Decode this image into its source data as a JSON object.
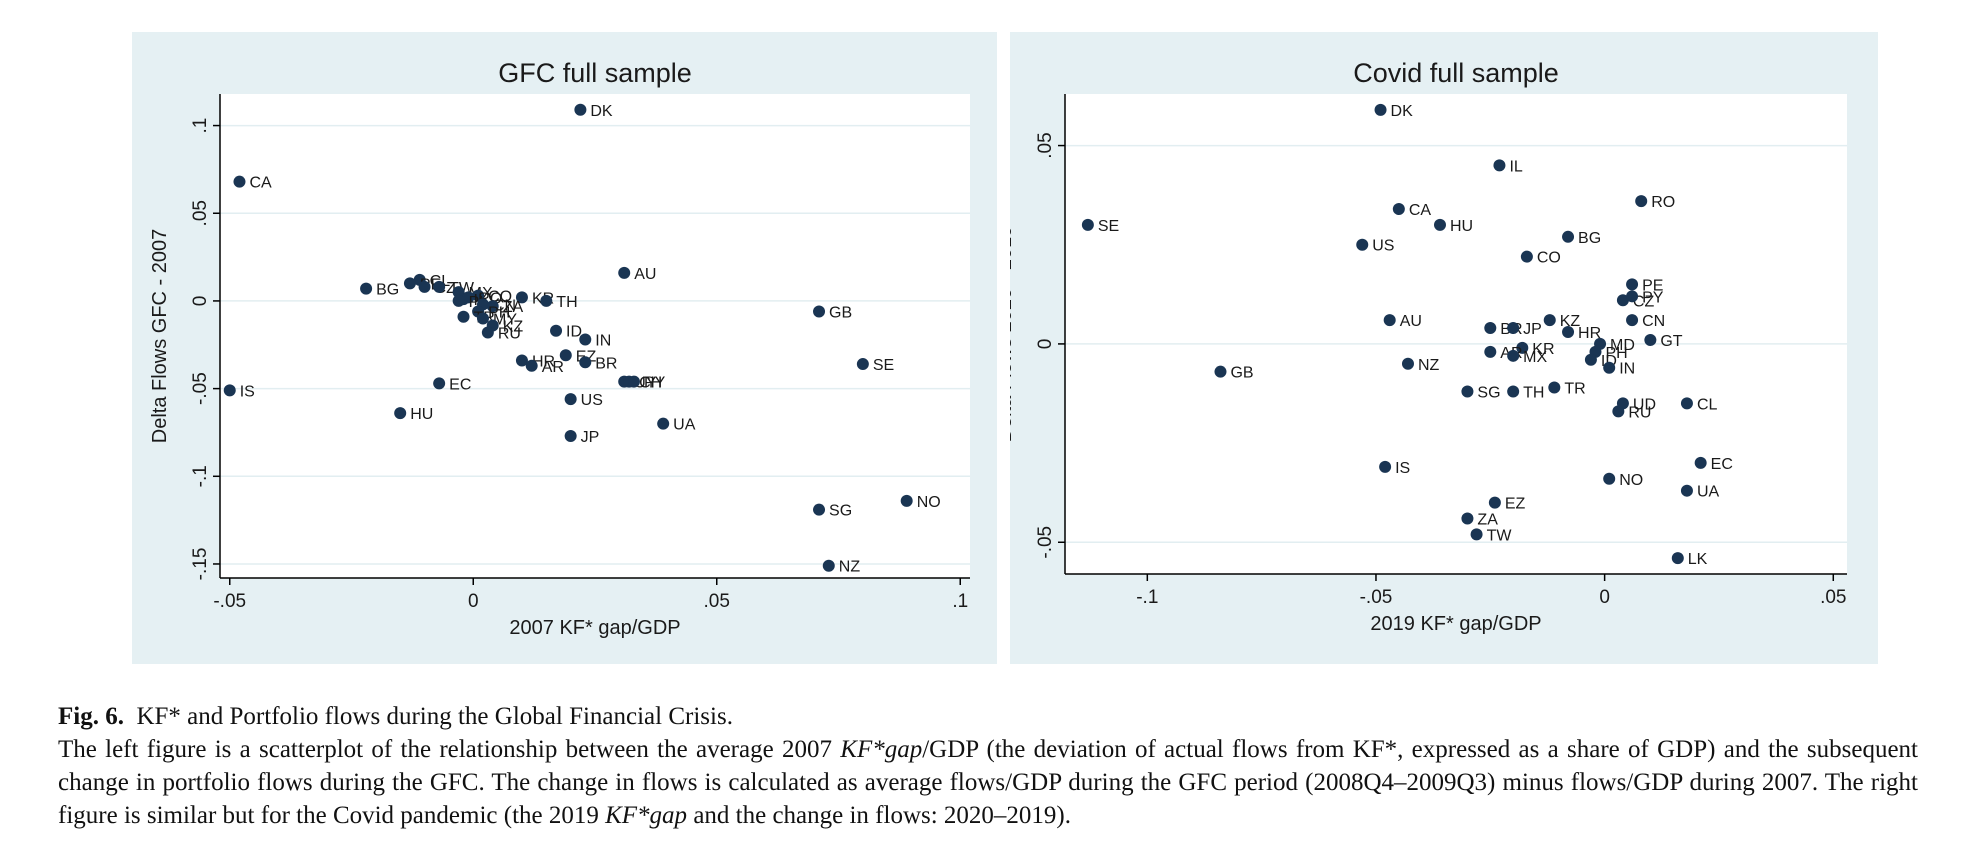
{
  "chart_data": [
    {
      "type": "scatter",
      "title": "GFC full sample",
      "xlabel": "2007 KF* gap/GDP",
      "ylabel": "Delta Flows GFC - 2007",
      "xlim": [
        -0.052,
        0.102
      ],
      "ylim": [
        -0.158,
        0.118
      ],
      "xticks": [
        -0.05,
        0,
        0.05,
        0.1
      ],
      "xtick_labels": [
        "-.05",
        "0",
        ".05",
        ".1"
      ],
      "yticks": [
        0.1,
        0.05,
        0,
        -0.05,
        -0.1,
        -0.15
      ],
      "ytick_labels": [
        ".1",
        ".05",
        "0",
        "-.05",
        "-.1",
        "-.15"
      ],
      "grid": true,
      "color": "#1a3553",
      "points": [
        {
          "label": "DK",
          "x": 0.022,
          "y": 0.109
        },
        {
          "label": "CA",
          "x": -0.048,
          "y": 0.068
        },
        {
          "label": "AU",
          "x": 0.031,
          "y": 0.016
        },
        {
          "label": "BG",
          "x": -0.022,
          "y": 0.007
        },
        {
          "label": "CL",
          "x": -0.011,
          "y": 0.012
        },
        {
          "label": "PE",
          "x": -0.013,
          "y": 0.01
        },
        {
          "label": "CZ",
          "x": -0.01,
          "y": 0.008
        },
        {
          "label": "TW",
          "x": -0.007,
          "y": 0.008
        },
        {
          "label": "MX",
          "x": -0.003,
          "y": 0.005
        },
        {
          "label": "CO",
          "x": 0.001,
          "y": 0.003
        },
        {
          "label": "IL",
          "x": -0.002,
          "y": 0.001
        },
        {
          "label": "RO",
          "x": -0.001,
          "y": 0.002
        },
        {
          "label": "KR",
          "x": 0.01,
          "y": 0.002
        },
        {
          "label": "TH",
          "x": 0.015,
          "y": 0.0
        },
        {
          "label": "PL",
          "x": -0.003,
          "y": 0.0
        },
        {
          "label": "CN",
          "x": 0.002,
          "y": -0.002
        },
        {
          "label": "ZA",
          "x": 0.004,
          "y": -0.003
        },
        {
          "label": "PH",
          "x": 0.001,
          "y": -0.006
        },
        {
          "label": "TR",
          "x": -0.002,
          "y": -0.009
        },
        {
          "label": "MY",
          "x": 0.002,
          "y": -0.01
        },
        {
          "label": "KZ",
          "x": 0.004,
          "y": -0.014
        },
        {
          "label": "RU",
          "x": 0.003,
          "y": -0.018
        },
        {
          "label": "ID",
          "x": 0.017,
          "y": -0.017
        },
        {
          "label": "IN",
          "x": 0.023,
          "y": -0.022
        },
        {
          "label": "EZ",
          "x": 0.019,
          "y": -0.031
        },
        {
          "label": "BR",
          "x": 0.023,
          "y": -0.035
        },
        {
          "label": "HR",
          "x": 0.01,
          "y": -0.034
        },
        {
          "label": "AR",
          "x": 0.012,
          "y": -0.037
        },
        {
          "label": "UY",
          "x": 0.031,
          "y": -0.046
        },
        {
          "label": "CH",
          "x": 0.032,
          "y": -0.046
        },
        {
          "label": "PY",
          "x": 0.033,
          "y": -0.046
        },
        {
          "label": "GB",
          "x": 0.071,
          "y": -0.006
        },
        {
          "label": "SE",
          "x": 0.08,
          "y": -0.036
        },
        {
          "label": "IS",
          "x": -0.05,
          "y": -0.051
        },
        {
          "label": "EC",
          "x": -0.007,
          "y": -0.047
        },
        {
          "label": "HU",
          "x": -0.015,
          "y": -0.064
        },
        {
          "label": "US",
          "x": 0.02,
          "y": -0.056
        },
        {
          "label": "UA",
          "x": 0.039,
          "y": -0.07
        },
        {
          "label": "JP",
          "x": 0.02,
          "y": -0.077
        },
        {
          "label": "NO",
          "x": 0.089,
          "y": -0.114
        },
        {
          "label": "SG",
          "x": 0.071,
          "y": -0.119
        },
        {
          "label": "NZ",
          "x": 0.073,
          "y": -0.151
        }
      ]
    },
    {
      "type": "scatter",
      "title": "Covid full sample",
      "xlabel": "2019 KF* gap/GDP",
      "ylabel": "Delta Flows 2020 - 2019",
      "xlim": [
        -0.118,
        0.053
      ],
      "ylim": [
        -0.058,
        0.063
      ],
      "xticks": [
        -0.1,
        -0.05,
        0,
        0.05
      ],
      "xtick_labels": [
        "-.1",
        "-.05",
        "0",
        ".05"
      ],
      "yticks": [
        0.05,
        0,
        -0.05
      ],
      "ytick_labels": [
        ".05",
        "0",
        "-.05"
      ],
      "grid": true,
      "color": "#1a3553",
      "points": [
        {
          "label": "DK",
          "x": -0.049,
          "y": 0.059
        },
        {
          "label": "IL",
          "x": -0.023,
          "y": 0.045
        },
        {
          "label": "RO",
          "x": 0.008,
          "y": 0.036
        },
        {
          "label": "CA",
          "x": -0.045,
          "y": 0.034
        },
        {
          "label": "HU",
          "x": -0.036,
          "y": 0.03
        },
        {
          "label": "SE",
          "x": -0.113,
          "y": 0.03
        },
        {
          "label": "BG",
          "x": -0.008,
          "y": 0.027
        },
        {
          "label": "US",
          "x": -0.053,
          "y": 0.025
        },
        {
          "label": "CO",
          "x": -0.017,
          "y": 0.022
        },
        {
          "label": "PE",
          "x": 0.006,
          "y": 0.015
        },
        {
          "label": "CZ",
          "x": 0.004,
          "y": 0.011
        },
        {
          "label": "PY",
          "x": 0.006,
          "y": 0.012
        },
        {
          "label": "KZ",
          "x": -0.012,
          "y": 0.006
        },
        {
          "label": "CN",
          "x": 0.006,
          "y": 0.006
        },
        {
          "label": "AU",
          "x": -0.047,
          "y": 0.006
        },
        {
          "label": "BR",
          "x": -0.025,
          "y": 0.004
        },
        {
          "label": "JP",
          "x": -0.02,
          "y": 0.004
        },
        {
          "label": "HR",
          "x": -0.008,
          "y": 0.003
        },
        {
          "label": "GT",
          "x": 0.01,
          "y": 0.001
        },
        {
          "label": "MD",
          "x": -0.001,
          "y": 0.0
        },
        {
          "label": "KR",
          "x": -0.018,
          "y": -0.001
        },
        {
          "label": "AR",
          "x": -0.025,
          "y": -0.002
        },
        {
          "label": "MX",
          "x": -0.02,
          "y": -0.003
        },
        {
          "label": "PH",
          "x": -0.002,
          "y": -0.002
        },
        {
          "label": "ID",
          "x": -0.003,
          "y": -0.004
        },
        {
          "label": "IN",
          "x": 0.001,
          "y": -0.006
        },
        {
          "label": "GB",
          "x": -0.084,
          "y": -0.007
        },
        {
          "label": "NZ",
          "x": -0.043,
          "y": -0.005
        },
        {
          "label": "SG",
          "x": -0.03,
          "y": -0.012
        },
        {
          "label": "TH",
          "x": -0.02,
          "y": -0.012
        },
        {
          "label": "TR",
          "x": -0.011,
          "y": -0.011
        },
        {
          "label": "UD",
          "x": 0.004,
          "y": -0.015
        },
        {
          "label": "RU",
          "x": 0.003,
          "y": -0.017
        },
        {
          "label": "CL",
          "x": 0.018,
          "y": -0.015
        },
        {
          "label": "IS",
          "x": -0.048,
          "y": -0.031
        },
        {
          "label": "EC",
          "x": 0.021,
          "y": -0.03
        },
        {
          "label": "NO",
          "x": 0.001,
          "y": -0.034
        },
        {
          "label": "UA",
          "x": 0.018,
          "y": -0.037
        },
        {
          "label": "EZ",
          "x": -0.024,
          "y": -0.04
        },
        {
          "label": "ZA",
          "x": -0.03,
          "y": -0.044
        },
        {
          "label": "TW",
          "x": -0.028,
          "y": -0.048
        },
        {
          "label": "LK",
          "x": 0.016,
          "y": -0.054
        }
      ]
    }
  ],
  "caption": {
    "label": "Fig. 6.",
    "title_text": "KF* and Portfolio flows during the Global Financial Crisis.",
    "body_part1": "The left figure is a scatterplot of the relationship between the average 2007",
    "body_math1": "KF*gap",
    "body_part2": "/GDP (the deviation of actual flows from KF*, expressed as a share of GDP) and the subsequent change in portfolio flows during the GFC. The change in flows is calculated as average flows/GDP during the GFC period (2008Q4–2009Q3) minus flows/GDP during 2007. The right figure is similar but for the Covid pandemic (the 2019",
    "body_math2": "KF*gap",
    "body_part3": "and the change in flows: 2020–2019)."
  }
}
